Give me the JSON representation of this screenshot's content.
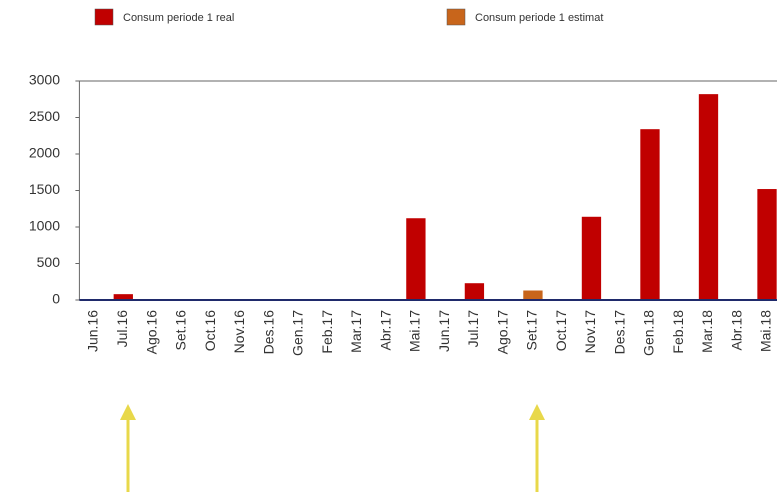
{
  "chart_data": {
    "type": "bar",
    "categories": [
      "Jun.16",
      "Jul.16",
      "Ago.16",
      "Set.16",
      "Oct.16",
      "Nov.16",
      "Des.16",
      "Gen.17",
      "Feb.17",
      "Mar.17",
      "Abr.17",
      "Mai.17",
      "Jun.17",
      "Jul.17",
      "Ago.17",
      "Set.17",
      "Oct.17",
      "Nov.17",
      "Des.17",
      "Gen.18",
      "Feb.18",
      "Mar.18",
      "Abr.18",
      "Mai.18"
    ],
    "series": [
      {
        "name": "Consum periode 1 real",
        "color": "#c00000",
        "values": [
          null,
          80,
          null,
          null,
          null,
          null,
          null,
          null,
          null,
          null,
          null,
          1120,
          null,
          230,
          null,
          null,
          null,
          1140,
          null,
          2340,
          null,
          2820,
          null,
          1520
        ]
      },
      {
        "name": "Consum periode 1 estimat",
        "color": "#c8651b",
        "values": [
          null,
          null,
          null,
          null,
          null,
          null,
          null,
          null,
          null,
          null,
          null,
          null,
          null,
          null,
          null,
          130,
          null,
          null,
          null,
          null,
          null,
          null,
          null,
          null
        ]
      }
    ],
    "ylim": [
      0,
      3000
    ],
    "yticks": [
      0,
      500,
      1000,
      1500,
      2000,
      2500,
      3000
    ],
    "grid": false
  }
}
